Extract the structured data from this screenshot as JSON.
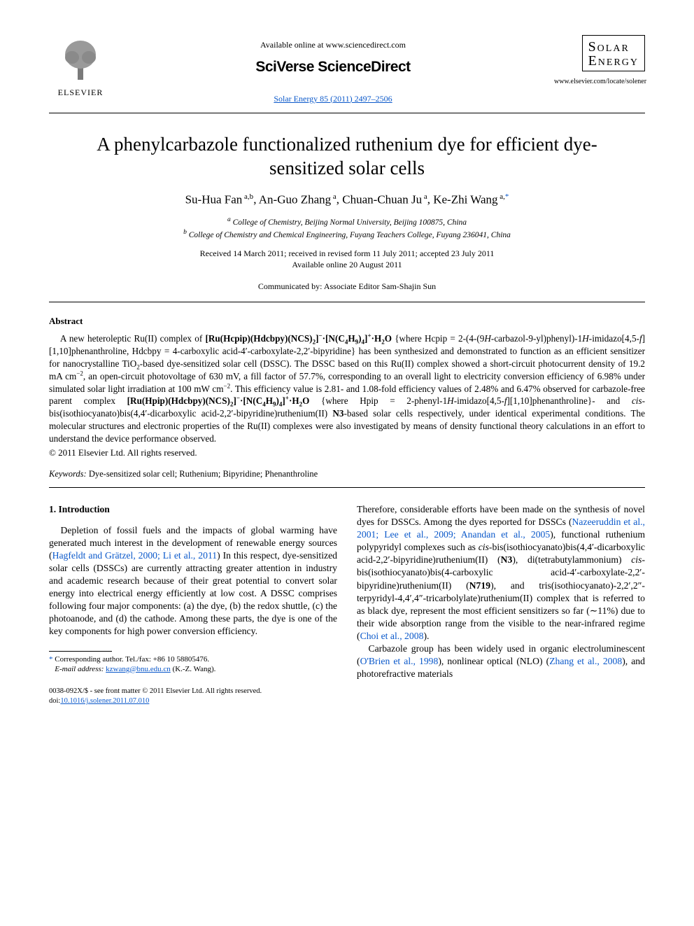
{
  "header": {
    "elsevier_label": "ELSEVIER",
    "available_online": "Available online at www.sciencedirect.com",
    "platform": "SciVerse ScienceDirect",
    "citation": "Solar Energy 85 (2011) 2497–2506",
    "journal_line1": "Solar",
    "journal_line2": "Energy",
    "journal_url": "www.elsevier.com/locate/solener"
  },
  "title": "A phenylcarbazole functionalized ruthenium dye for efficient dye-sensitized solar cells",
  "authors_html": "Su-Hua Fan<sup> a,b</sup>, An-Guo Zhang<sup> a</sup>, Chuan-Chuan Ju<sup> a</sup>, Ke-Zhi Wang<sup> a,</sup><sup class='star'>*</sup>",
  "affiliations": {
    "a": "College of Chemistry, Beijing Normal University, Beijing 100875, China",
    "b": "College of Chemistry and Chemical Engineering, Fuyang Teachers College, Fuyang 236041, China"
  },
  "dates": {
    "received": "Received 14 March 2011; received in revised form 11 July 2011; accepted 23 July 2011",
    "online": "Available online 20 August 2011"
  },
  "communicated": "Communicated by: Associate Editor Sam-Shajin Sun",
  "abstract": {
    "heading": "Abstract",
    "body_html": "A new heteroleptic Ru(II) complex of <b>[Ru(Hcpip)(Hdcbpy)(NCS)<sub>2</sub>]<sup>−</sup>·[N(C<sub>4</sub>H<sub>9</sub>)<sub>4</sub>]<sup>+</sup>·H<sub>2</sub>O</b> {where Hcpip = 2-(4-(9<i>H</i>-carbazol-9-yl)phenyl)-1<i>H</i>-imidazo[4,5-<i>f</i>] [1,10]phenanthroline, Hdcbpy = 4-carboxylic acid-4′-carboxylate-2,2′-bipyridine} has been synthesized and demonstrated to function as an efficient sensitizer for nanocrystalline TiO<sub>2</sub>-based dye-sensitized solar cell (DSSC). The DSSC based on this Ru(II) complex showed a short-circuit photocurrent density of 19.2 mA cm<sup>−2</sup>, an open-circuit photovoltage of 630 mV, a fill factor of 57.7%, corresponding to an overall light to electricity conversion efficiency of 6.98% under simulated solar light irradiation at 100 mW cm<sup>−2</sup>. This efficiency value is 2.81- and 1.08-fold efficiency values of 2.48% and 6.47% observed for carbazole-free parent complex <b>[Ru(Hpip)(Hdcbpy)(NCS)<sub>2</sub>]<sup>−</sup>·[N(C<sub>4</sub>H<sub>9</sub>)<sub>4</sub>]<sup>+</sup>·H<sub>2</sub>O</b> {where Hpip = 2-phenyl-1<i>H</i>-imidazo[4,5-<i>f</i>][1,10]phenanthroline}- and <i>cis</i>-bis(isothiocyanato)bis(4,4′-dicarboxylic acid-2,2′-bipyridine)ruthenium(II) <b>N3</b>-based solar cells respectively, under identical experimental conditions. The molecular structures and electronic properties of the Ru(II) complexes were also investigated by means of density functional theory calculations in an effort to understand the device performance observed.",
    "copyright": "© 2011 Elsevier Ltd. All rights reserved."
  },
  "keywords": {
    "label": "Keywords:",
    "text": " Dye-sensitized solar cell; Ruthenium; Bipyridine; Phenanthroline"
  },
  "section1": {
    "heading": "1. Introduction",
    "left_html": "Depletion of fossil fuels and the impacts of global warming have generated much interest in the development of renewable energy sources (<span class='cite'>Hagfeldt and Grätzel, 2000; Li et al., 2011</span>) In this respect, dye-sensitized solar cells (DSSCs) are currently attracting greater attention in industry and academic research because of their great potential to convert solar energy into electrical energy efficiently at low cost. A DSSC comprises following four major components: (a) the dye, (b) the redox shuttle, (c) the photoanode, and (d) the cathode. Among these parts, the dye is one of the key components for high power conversion efficiency.",
    "right1_html": "Therefore, considerable efforts have been made on the synthesis of novel dyes for DSSCs. Among the dyes reported for DSSCs (<span class='cite'>Nazeeruddin et al., 2001; Lee et al., 2009; Anandan et al., 2005</span>), functional ruthenium polypyridyl complexes such as <i>cis</i>-bis(isothiocyanato)bis(4,4′-dicarboxylic acid-2,2′-bipyridine)ruthenium(II) (<b>N3</b>), di(tetrabutylammonium) <i>cis</i>-bis(isothiocyanato)bis(4-carboxylic acid-4′-carboxylate-2,2′-bipyridine)ruthenium(II) (<b>N719</b>), and tris(isothiocyanato)-2,2′,2″-terpyridyl-4,4′,4″-tricarbolylate)ruthenium(II) complex that is referred to as black dye, represent the most efficient sensitizers so far (∼11%) due to their wide absorption range from the visible to the near-infrared regime (<span class='cite'>Choi et al., 2008</span>).",
    "right2_html": "Carbazole group has been widely used in organic electroluminescent (<span class='cite'>O'Brien et al., 1998</span>), nonlinear optical (NLO) (<span class='cite'>Zhang et al., 2008</span>), and photorefractive materials"
  },
  "footnote": {
    "corr": "Corresponding author. Tel./fax: +86 10 58805476.",
    "email_label": "E-mail address:",
    "email": "kzwang@bnu.edu.cn",
    "email_tail": " (K.-Z. Wang)."
  },
  "footer": {
    "issn": "0038-092X/$ - see front matter © 2011 Elsevier Ltd. All rights reserved.",
    "doi_label": "doi:",
    "doi": "10.1016/j.solener.2011.07.010"
  },
  "colors": {
    "link": "#0a58ca",
    "text": "#000000",
    "bg": "#ffffff"
  }
}
